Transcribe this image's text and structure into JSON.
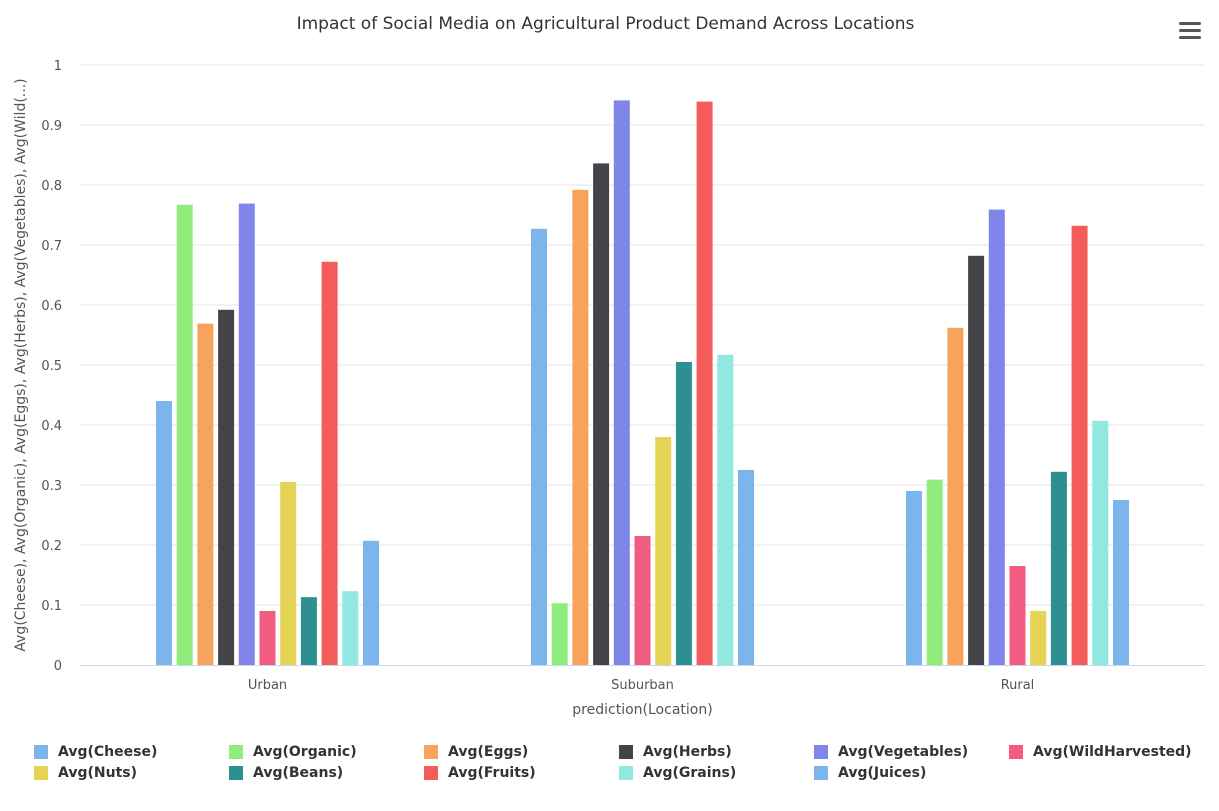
{
  "title": "Impact of Social Media on Agricultural Product Demand Across Locations",
  "menu_icon": "hamburger-menu-icon",
  "chart_data": {
    "type": "bar",
    "title": "Impact of Social Media on Agricultural Product Demand Across Locations",
    "xlabel": "prediction(Location)",
    "ylabel": "Avg(Cheese), Avg(Organic), Avg(Eggs), Avg(Herbs), Avg(Vegetables), Avg(Wild(...)",
    "ylim": [
      0,
      1
    ],
    "yticks": [
      "0",
      "0.1",
      "0.2",
      "0.3",
      "0.4",
      "0.5",
      "0.6",
      "0.7",
      "0.8",
      "0.9",
      "1"
    ],
    "grid": true,
    "legend_position": "bottom",
    "categories": [
      "Urban",
      "Suburban",
      "Rural"
    ],
    "series": [
      {
        "name": "Avg(Cheese)",
        "color": "#7cb5ec",
        "values": [
          0.44,
          0.727,
          0.29
        ]
      },
      {
        "name": "Avg(Organic)",
        "color": "#90ed7d",
        "values": [
          0.767,
          0.103,
          0.309
        ]
      },
      {
        "name": "Avg(Eggs)",
        "color": "#f7a35c",
        "values": [
          0.569,
          0.792,
          0.562
        ]
      },
      {
        "name": "Avg(Herbs)",
        "color": "#434348",
        "values": [
          0.592,
          0.836,
          0.682
        ]
      },
      {
        "name": "Avg(Vegetables)",
        "color": "#8085e9",
        "values": [
          0.769,
          0.941,
          0.759
        ]
      },
      {
        "name": "Avg(WildHarvested)",
        "color": "#f15c80",
        "values": [
          0.09,
          0.215,
          0.165
        ]
      },
      {
        "name": "Avg(Nuts)",
        "color": "#e4d354",
        "values": [
          0.305,
          0.38,
          0.09
        ]
      },
      {
        "name": "Avg(Beans)",
        "color": "#2b908f",
        "values": [
          0.113,
          0.505,
          0.322
        ]
      },
      {
        "name": "Avg(Fruits)",
        "color": "#f45b5b",
        "values": [
          0.672,
          0.939,
          0.732
        ]
      },
      {
        "name": "Avg(Grains)",
        "color": "#91e8e1",
        "values": [
          0.123,
          0.517,
          0.407
        ]
      },
      {
        "name": "Avg(Juices)",
        "color": "#7cb5ec",
        "values": [
          0.207,
          0.325,
          0.275
        ]
      }
    ]
  }
}
